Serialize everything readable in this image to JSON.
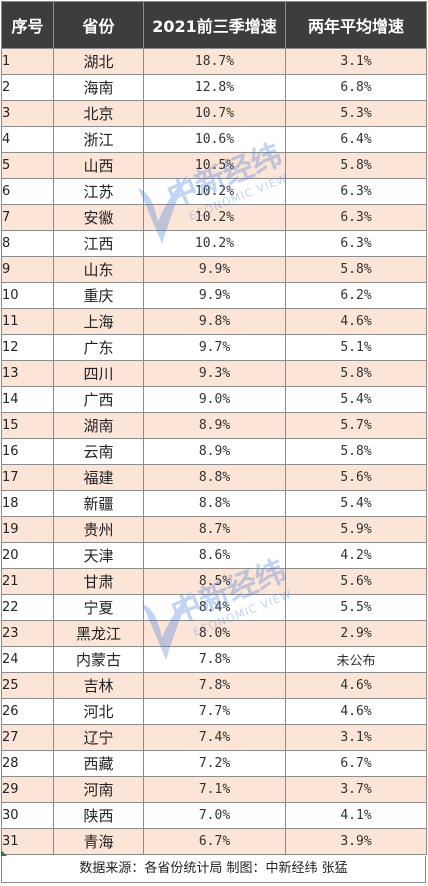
{
  "header": {
    "col_index": "序号",
    "col_province": "省份",
    "col_growth_2021": "2021前三季增速",
    "col_growth_avg": "两年平均增速"
  },
  "rows": [
    {
      "idx": "1",
      "prov": "湖北",
      "g1": "18.7%",
      "g2": "3.1%"
    },
    {
      "idx": "2",
      "prov": "海南",
      "g1": "12.8%",
      "g2": "6.8%"
    },
    {
      "idx": "3",
      "prov": "北京",
      "g1": "10.7%",
      "g2": "5.3%"
    },
    {
      "idx": "4",
      "prov": "浙江",
      "g1": "10.6%",
      "g2": "6.4%"
    },
    {
      "idx": "5",
      "prov": "山西",
      "g1": "10.5%",
      "g2": "5.8%"
    },
    {
      "idx": "6",
      "prov": "江苏",
      "g1": "10.2%",
      "g2": "6.3%"
    },
    {
      "idx": "7",
      "prov": "安徽",
      "g1": "10.2%",
      "g2": "6.3%"
    },
    {
      "idx": "8",
      "prov": "江西",
      "g1": "10.2%",
      "g2": "6.3%"
    },
    {
      "idx": "9",
      "prov": "山东",
      "g1": "9.9%",
      "g2": "5.8%"
    },
    {
      "idx": "10",
      "prov": "重庆",
      "g1": "9.9%",
      "g2": "6.2%"
    },
    {
      "idx": "11",
      "prov": "上海",
      "g1": "9.8%",
      "g2": "4.6%"
    },
    {
      "idx": "12",
      "prov": "广东",
      "g1": "9.7%",
      "g2": "5.1%"
    },
    {
      "idx": "13",
      "prov": "四川",
      "g1": "9.3%",
      "g2": "5.8%"
    },
    {
      "idx": "14",
      "prov": "广西",
      "g1": "9.0%",
      "g2": "5.4%"
    },
    {
      "idx": "15",
      "prov": "湖南",
      "g1": "8.9%",
      "g2": "5.7%"
    },
    {
      "idx": "16",
      "prov": "云南",
      "g1": "8.9%",
      "g2": "5.8%"
    },
    {
      "idx": "17",
      "prov": "福建",
      "g1": "8.8%",
      "g2": "5.6%"
    },
    {
      "idx": "18",
      "prov": "新疆",
      "g1": "8.8%",
      "g2": "5.4%"
    },
    {
      "idx": "19",
      "prov": "贵州",
      "g1": "8.7%",
      "g2": "5.9%"
    },
    {
      "idx": "20",
      "prov": "天津",
      "g1": "8.6%",
      "g2": "4.2%"
    },
    {
      "idx": "21",
      "prov": "甘肃",
      "g1": "8.5%",
      "g2": "5.6%"
    },
    {
      "idx": "22",
      "prov": "宁夏",
      "g1": "8.4%",
      "g2": "5.5%"
    },
    {
      "idx": "23",
      "prov": "黑龙江",
      "g1": "8.0%",
      "g2": "2.9%"
    },
    {
      "idx": "24",
      "prov": "内蒙古",
      "g1": "7.8%",
      "g2": "未公布"
    },
    {
      "idx": "25",
      "prov": "吉林",
      "g1": "7.8%",
      "g2": "4.6%"
    },
    {
      "idx": "26",
      "prov": "河北",
      "g1": "7.7%",
      "g2": "4.6%"
    },
    {
      "idx": "27",
      "prov": "辽宁",
      "g1": "7.4%",
      "g2": "3.1%"
    },
    {
      "idx": "28",
      "prov": "西藏",
      "g1": "7.2%",
      "g2": "6.7%"
    },
    {
      "idx": "29",
      "prov": "河南",
      "g1": "7.1%",
      "g2": "3.7%"
    },
    {
      "idx": "30",
      "prov": "陕西",
      "g1": "7.0%",
      "g2": "4.1%"
    },
    {
      "idx": "31",
      "prov": "青海",
      "g1": "6.7%",
      "g2": "3.9%"
    }
  ],
  "footer": {
    "source": "数据来源：各省份统计局  制图：中新经纬  张猛"
  },
  "watermark": {
    "cn": "中新经纬",
    "en": "ECONOMIC VIEW"
  },
  "colors": {
    "header_bg": "#3d3d3d",
    "row_alt_bg": "#fce4d6",
    "watermark": "#4f86d9"
  }
}
